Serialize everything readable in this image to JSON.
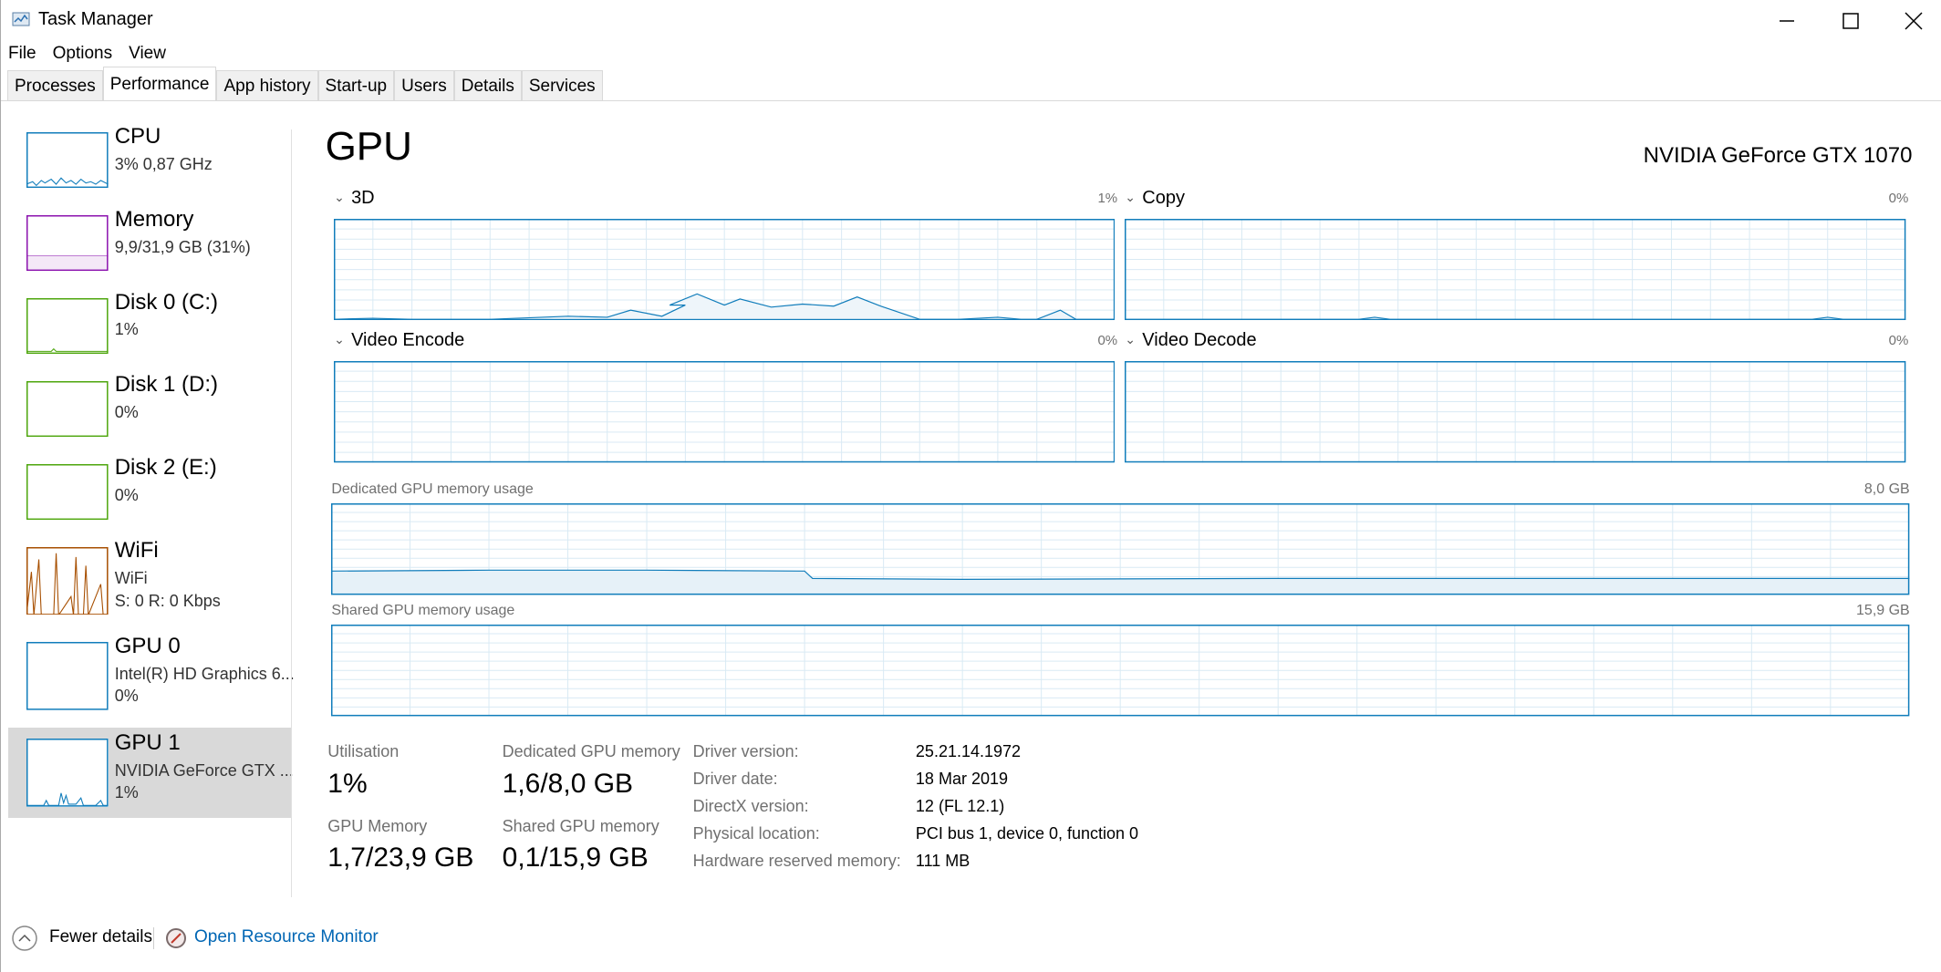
{
  "window": {
    "title": "Task Manager"
  },
  "menu": [
    "File",
    "Options",
    "View"
  ],
  "tabs": {
    "items": [
      "Processes",
      "Performance",
      "App history",
      "Start-up",
      "Users",
      "Details",
      "Services"
    ],
    "active": 1
  },
  "sidebar": {
    "selected": 7,
    "items": [
      {
        "name": "CPU",
        "lines": [
          "3%  0,87 GHz"
        ],
        "color": "#117dbb"
      },
      {
        "name": "Memory",
        "lines": [
          "9,9/31,9 GB (31%)"
        ],
        "color": "#8b12ae"
      },
      {
        "name": "Disk 0 (C:)",
        "lines": [
          "1%"
        ],
        "color": "#4da60c"
      },
      {
        "name": "Disk 1 (D:)",
        "lines": [
          "0%"
        ],
        "color": "#4da60c"
      },
      {
        "name": "Disk 2 (E:)",
        "lines": [
          "0%"
        ],
        "color": "#4da60c"
      },
      {
        "name": "WiFi",
        "lines": [
          "WiFi",
          "S: 0  R: 0 Kbps"
        ],
        "color": "#a74f01"
      },
      {
        "name": "GPU 0",
        "lines": [
          "Intel(R) HD Graphics 6...",
          "0%"
        ],
        "color": "#117dbb"
      },
      {
        "name": "GPU 1",
        "lines": [
          "NVIDIA GeForce GTX ...",
          "1%"
        ],
        "color": "#117dbb"
      }
    ]
  },
  "detail": {
    "title": "GPU",
    "device": "NVIDIA GeForce GTX 1070",
    "engines": [
      {
        "name": "3D",
        "max": "1%"
      },
      {
        "name": "Copy",
        "max": "0%"
      },
      {
        "name": "Video Encode",
        "max": "0%"
      },
      {
        "name": "Video Decode",
        "max": "0%"
      }
    ],
    "memory_graphs": [
      {
        "name": "Dedicated GPU memory usage",
        "max": "8,0 GB"
      },
      {
        "name": "Shared GPU memory usage",
        "max": "15,9 GB"
      }
    ],
    "stats": [
      {
        "label": "Utilisation",
        "value": "1%"
      },
      {
        "label": "Dedicated GPU memory",
        "value": "1,6/8,0 GB"
      },
      {
        "label": "GPU Memory",
        "value": "1,7/23,9 GB"
      },
      {
        "label": "Shared GPU memory",
        "value": "0,1/15,9 GB"
      }
    ],
    "properties": [
      {
        "label": "Driver version:",
        "value": "25.21.14.1972"
      },
      {
        "label": "Driver date:",
        "value": "18 Mar 2019"
      },
      {
        "label": "DirectX version:",
        "value": "12 (FL 12.1)"
      },
      {
        "label": "Physical location:",
        "value": "PCI bus 1, device 0, function 0"
      },
      {
        "label": "Hardware reserved memory:",
        "value": "111 MB"
      }
    ]
  },
  "footer": {
    "fewer": "Fewer details",
    "monitor": "Open Resource Monitor"
  }
}
